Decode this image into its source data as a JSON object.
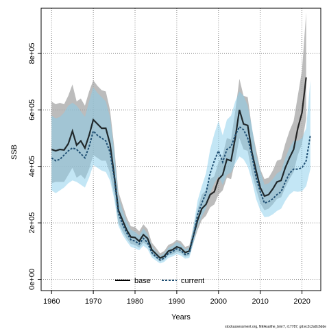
{
  "chart_data": {
    "type": "line",
    "title": "",
    "xlabel": "Years",
    "ylabel": "SSB",
    "xlim": [
      1957.5,
      2024.5
    ],
    "ylim": [
      -40000,
      960000
    ],
    "x_ticks": [
      1960,
      1970,
      1980,
      1990,
      2000,
      2010,
      2020
    ],
    "y_ticks": [
      0,
      200000,
      400000,
      600000,
      800000
    ],
    "y_tick_labels": [
      "0e+00",
      "2e+05",
      "4e+05",
      "6e+05",
      "8e+05"
    ],
    "grid": true,
    "legend_position": "bottom-center",
    "footnote": "stockassessment.org, NEAsaithe_bmr7, r17787, git:ec2c2a0c6dde",
    "x": [
      1960,
      1961,
      1962,
      1963,
      1964,
      1965,
      1966,
      1967,
      1968,
      1969,
      1970,
      1971,
      1972,
      1973,
      1974,
      1975,
      1976,
      1977,
      1978,
      1979,
      1980,
      1981,
      1982,
      1983,
      1984,
      1985,
      1986,
      1987,
      1988,
      1989,
      1990,
      1991,
      1992,
      1993,
      1994,
      1995,
      1996,
      1997,
      1998,
      1999,
      2000,
      2001,
      2002,
      2003,
      2004,
      2005,
      2006,
      2007,
      2008,
      2009,
      2010,
      2011,
      2012,
      2013,
      2014,
      2015,
      2016,
      2017,
      2018,
      2019,
      2020,
      2021,
      2022
    ],
    "series": [
      {
        "name": "base",
        "color": "#000000",
        "band_color": "#a6a6a6",
        "values": [
          460000,
          455000,
          460000,
          458000,
          480000,
          525000,
          475000,
          490000,
          465000,
          510000,
          565000,
          550000,
          535000,
          535000,
          480000,
          370000,
          245000,
          210000,
          175000,
          150000,
          148000,
          135000,
          158000,
          145000,
          105000,
          90000,
          75000,
          82000,
          100000,
          105000,
          115000,
          110000,
          95000,
          100000,
          155000,
          210000,
          250000,
          265000,
          300000,
          310000,
          355000,
          370000,
          425000,
          420000,
          500000,
          600000,
          550000,
          545000,
          450000,
          385000,
          325000,
          295000,
          300000,
          320000,
          345000,
          350000,
          395000,
          430000,
          460000,
          535000,
          590000,
          715000,
          null
        ],
        "lower": [
          340000,
          345000,
          345000,
          345000,
          370000,
          395000,
          360000,
          370000,
          355000,
          390000,
          440000,
          430000,
          420000,
          420000,
          375000,
          300000,
          200000,
          170000,
          145000,
          125000,
          122000,
          112000,
          130000,
          120000,
          87000,
          75000,
          63000,
          69000,
          85000,
          88000,
          97000,
          93000,
          80000,
          85000,
          130000,
          175000,
          210000,
          225000,
          255000,
          265000,
          300000,
          315000,
          360000,
          355000,
          420000,
          500000,
          460000,
          455000,
          375000,
          320000,
          270000,
          245000,
          250000,
          265000,
          285000,
          290000,
          325000,
          355000,
          380000,
          440000,
          480000,
          570000,
          null
        ],
        "upper": [
          630000,
          620000,
          625000,
          620000,
          650000,
          690000,
          630000,
          640000,
          615000,
          665000,
          705000,
          685000,
          670000,
          665000,
          600000,
          470000,
          310000,
          265000,
          220000,
          188000,
          185000,
          170000,
          195000,
          178000,
          130000,
          112000,
          92000,
          100000,
          122000,
          128000,
          140000,
          134000,
          115000,
          120000,
          185000,
          250000,
          300000,
          315000,
          355000,
          365000,
          415000,
          440000,
          500000,
          495000,
          595000,
          710000,
          650000,
          645000,
          535000,
          460000,
          390000,
          355000,
          360000,
          385000,
          420000,
          425000,
          480000,
          525000,
          560000,
          650000,
          740000,
          945000,
          null
        ]
      },
      {
        "name": "current",
        "color": "#000000",
        "line_color": "#1f4f73",
        "band_color": "#87ceeb",
        "values": [
          430000,
          420000,
          425000,
          440000,
          455000,
          465000,
          460000,
          445000,
          430000,
          470000,
          525000,
          510000,
          500000,
          490000,
          450000,
          360000,
          235000,
          195000,
          165000,
          140000,
          135000,
          125000,
          145000,
          130000,
          95000,
          80000,
          68000,
          75000,
          92000,
          98000,
          108000,
          102000,
          88000,
          92000,
          155000,
          230000,
          270000,
          305000,
          375000,
          420000,
          455000,
          415000,
          460000,
          470000,
          510000,
          540000,
          530000,
          500000,
          440000,
          360000,
          310000,
          270000,
          275000,
          285000,
          300000,
          310000,
          345000,
          375000,
          390000,
          390000,
          395000,
          420000,
          510000
        ],
        "lower": [
          315000,
          305000,
          315000,
          325000,
          340000,
          350000,
          345000,
          335000,
          325000,
          360000,
          405000,
          395000,
          385000,
          380000,
          350000,
          285000,
          190000,
          158000,
          135000,
          115000,
          110000,
          103000,
          119000,
          107000,
          78000,
          66000,
          56000,
          62000,
          76000,
          81000,
          89000,
          84000,
          73000,
          76000,
          128000,
          190000,
          222000,
          250000,
          305000,
          340000,
          365000,
          335000,
          370000,
          378000,
          410000,
          435000,
          425000,
          400000,
          350000,
          285000,
          245000,
          220000,
          222000,
          230000,
          242000,
          250000,
          278000,
          300000,
          312000,
          310000,
          312000,
          330000,
          390000
        ],
        "upper": [
          580000,
          570000,
          575000,
          590000,
          615000,
          625000,
          615000,
          595000,
          575000,
          630000,
          680000,
          660000,
          645000,
          630000,
          575000,
          455000,
          295000,
          245000,
          205000,
          175000,
          168000,
          155000,
          180000,
          160000,
          117000,
          98000,
          83000,
          92000,
          112000,
          119000,
          132000,
          124000,
          107000,
          112000,
          190000,
          280000,
          330000,
          375000,
          460000,
          515000,
          560000,
          510000,
          565000,
          580000,
          630000,
          665000,
          650000,
          615000,
          540000,
          445000,
          385000,
          335000,
          340000,
          355000,
          375000,
          385000,
          430000,
          465000,
          490000,
          490000,
          500000,
          535000,
          705000
        ]
      }
    ]
  }
}
